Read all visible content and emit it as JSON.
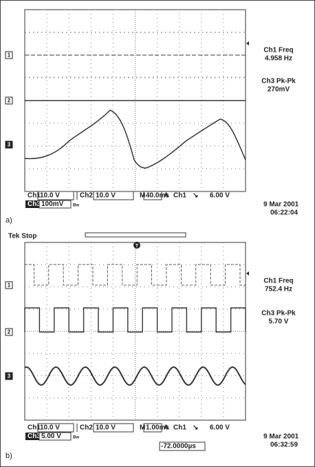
{
  "panels": [
    {
      "label": "a)",
      "markers": [
        "1",
        "2",
        "3"
      ],
      "readouts": [
        {
          "name": "Ch1 Freq",
          "value": "4.958 Hz"
        },
        {
          "name": "Ch3 Pk-Pk",
          "value": "270mV"
        }
      ],
      "status": {
        "ch1": "Ch1",
        "ch1_scale": "10.0 V",
        "ch2": "Ch2",
        "ch2_scale": "10.0 V",
        "timebase_label": "M",
        "timebase": "40.0ms",
        "trigger_label": "A",
        "trigger_source": "Ch1",
        "trigger_slope": "↘",
        "trigger_level": "6.00 V",
        "ch3": "Ch3",
        "ch3_scale": "100mV",
        "bw": "Bw"
      },
      "date": "9 Mar 2001",
      "time": "06:22:04"
    },
    {
      "label": "b)",
      "header": "Tek Stop",
      "trigger_marker": "T",
      "markers": [
        "1",
        "2",
        "3"
      ],
      "readouts": [
        {
          "name": "Ch1 Freq",
          "value": "752.4 Hz"
        },
        {
          "name": "Ch3 Pk-Pk",
          "value": "5.70 V"
        }
      ],
      "status": {
        "ch1": "Ch1",
        "ch1_scale": "10.0 V",
        "ch2": "Ch2",
        "ch2_scale": "10.0 V",
        "timebase_label": "M",
        "timebase": "1.00ms",
        "trigger_label": "A",
        "trigger_source": "Ch1",
        "trigger_slope": "↘",
        "trigger_level": "6.00 V",
        "ch3": "Ch3",
        "ch3_scale": "5.00 V",
        "bw": "Bw"
      },
      "trigger_offset": "-72.0000µs",
      "date": "9 Mar 2001",
      "time": "06:32:59"
    }
  ]
}
